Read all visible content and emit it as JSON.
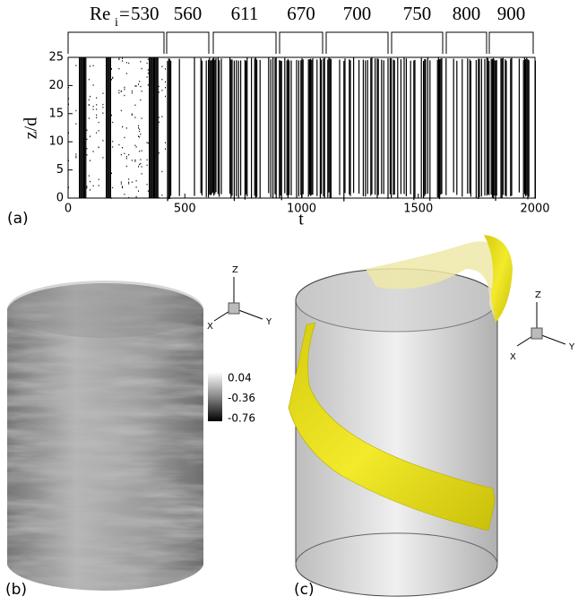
{
  "panel_a": {
    "label": "(a)",
    "re_symbol": "Re",
    "re_subscript": "i",
    "re_equals": "=",
    "re_values": [
      530,
      560,
      611,
      670,
      700,
      750,
      800,
      900
    ],
    "y_label": "z/d",
    "x_label": "t",
    "xlim": [
      0,
      2000
    ],
    "ylim": [
      0,
      25
    ],
    "xticks": [
      0,
      500,
      1000,
      1500,
      2000
    ],
    "yticks": [
      0,
      5,
      10,
      15,
      20,
      25
    ]
  },
  "panel_b": {
    "label": "(b)",
    "axes": {
      "z": "Z",
      "x": "X",
      "y": "Y"
    },
    "colorbar": {
      "ticks": [
        0.04,
        -0.36,
        -0.76
      ]
    }
  },
  "panel_c": {
    "label": "(c)",
    "axes": {
      "z": "Z",
      "x": "X",
      "y": "Y"
    }
  }
}
